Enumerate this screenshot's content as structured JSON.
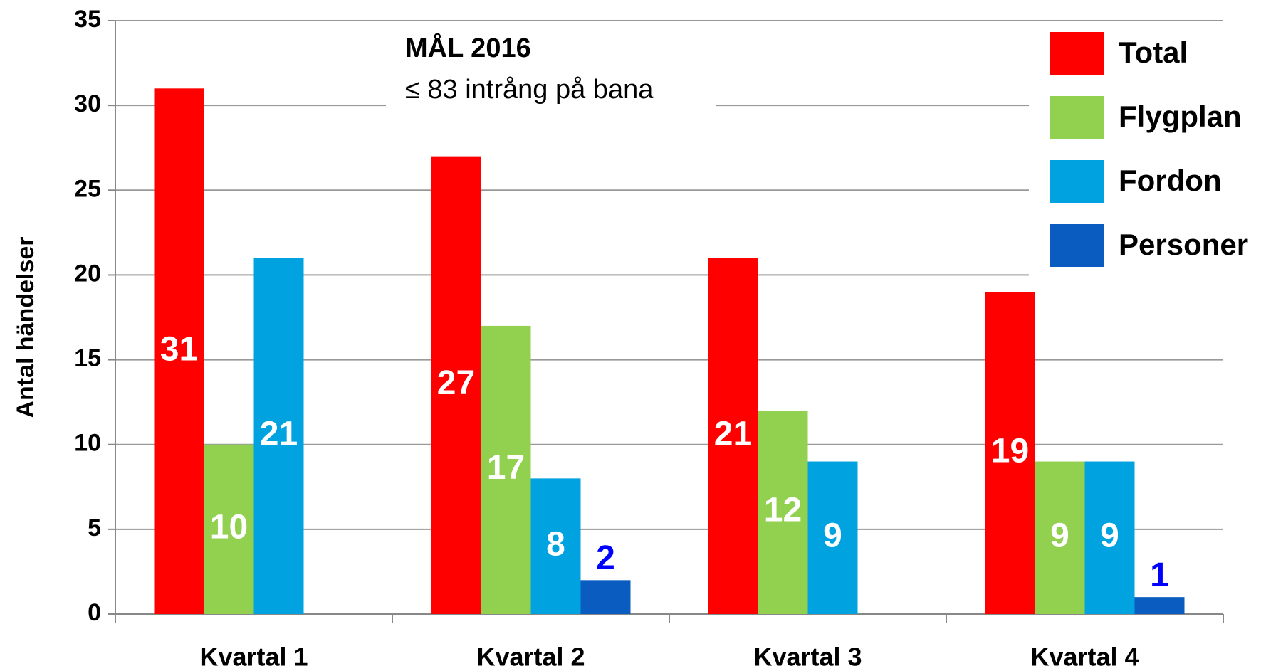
{
  "chart_data": {
    "type": "bar",
    "y_label": "Antal händelser",
    "annotation_title": "MÅL 2016",
    "annotation_text": "≤ 83 intrång på bana",
    "categories": [
      "Kvartal 1",
      "Kvartal 2",
      "Kvartal 3",
      "Kvartal 4"
    ],
    "series": [
      {
        "name": "Total",
        "color": "#ff0000",
        "values": [
          31,
          27,
          21,
          19
        ]
      },
      {
        "name": "Flygplan",
        "color": "#92d050",
        "values": [
          10,
          17,
          12,
          9
        ]
      },
      {
        "name": "Fordon",
        "color": "#00a2e0",
        "values": [
          21,
          8,
          9,
          9
        ]
      },
      {
        "name": "Personer",
        "color": "#0a5cc0",
        "values": [
          null,
          2,
          null,
          1
        ]
      }
    ],
    "ylim": [
      0,
      35
    ],
    "yticks": [
      0,
      5,
      10,
      15,
      20,
      25,
      30,
      35
    ],
    "grid": true,
    "legend": "top-right"
  }
}
